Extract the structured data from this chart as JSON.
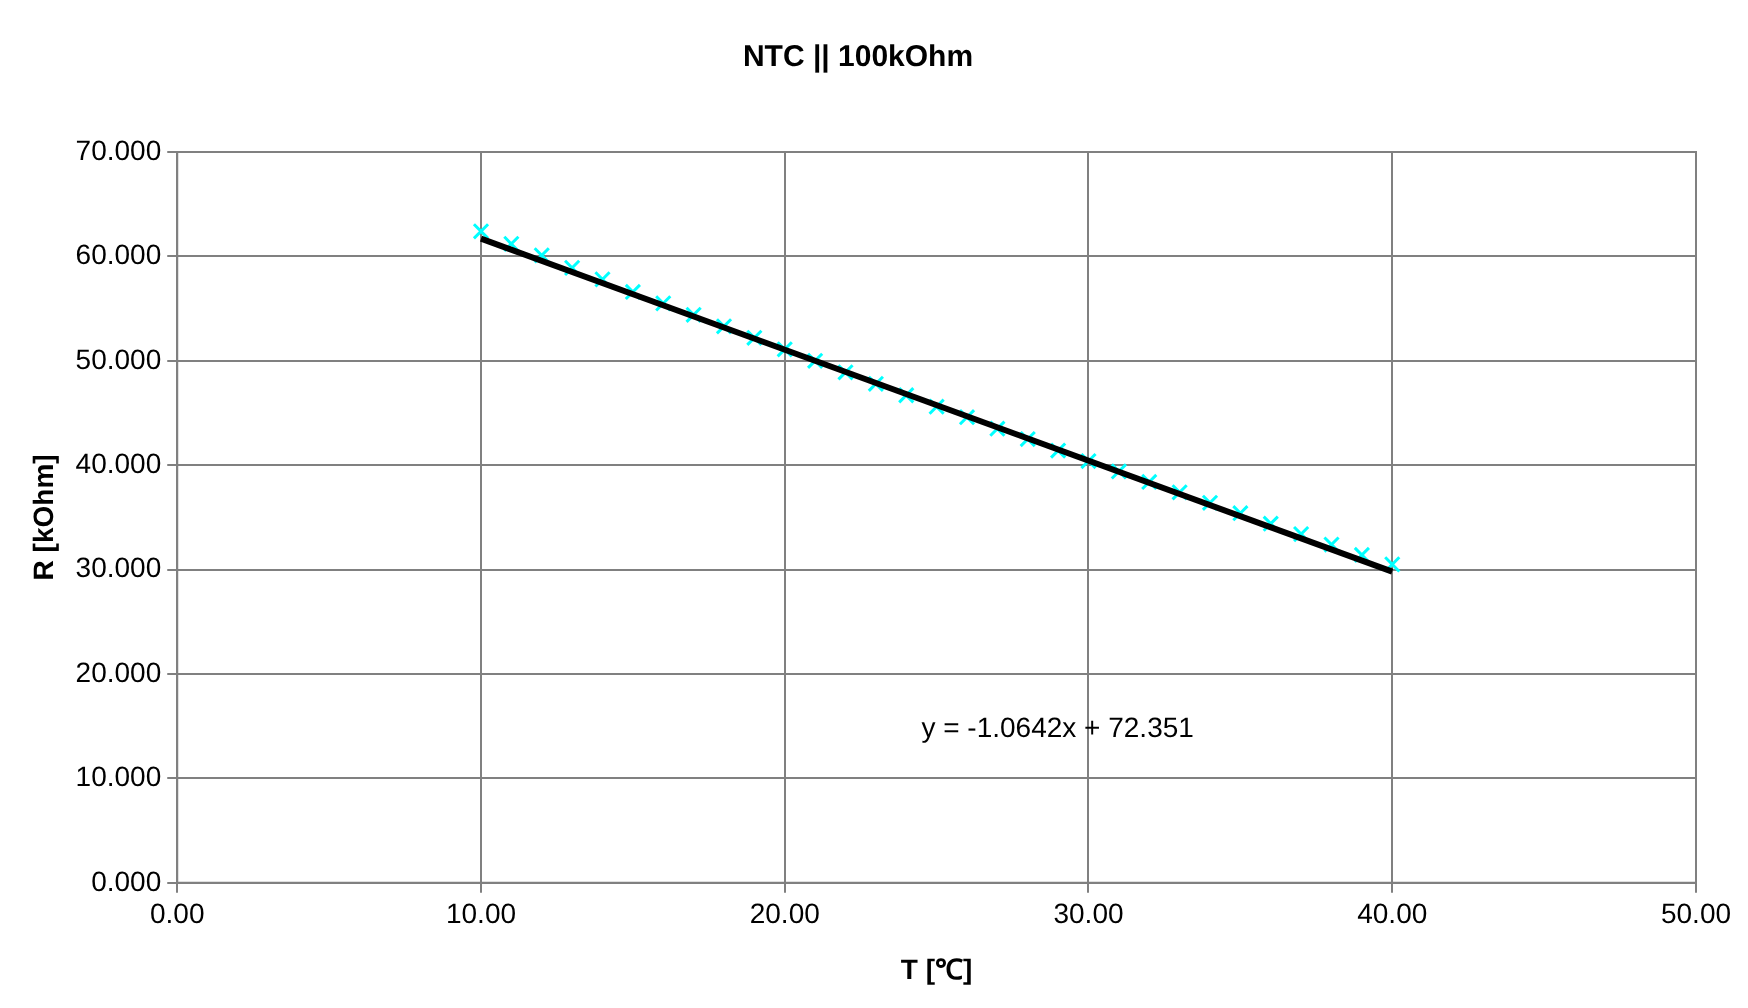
{
  "chart_data": {
    "type": "scatter",
    "title": "NTC || 100kOhm",
    "xlabel": "T [℃]",
    "ylabel": "R [kOhm]",
    "x": [
      10,
      11,
      12,
      13,
      14,
      15,
      16,
      17,
      18,
      19,
      20,
      21,
      22,
      23,
      24,
      25,
      26,
      27,
      28,
      29,
      30,
      31,
      32,
      33,
      34,
      35,
      36,
      37,
      38,
      39,
      40
    ],
    "series": [
      {
        "color": "#00ffff",
        "marker": "cross",
        "values": [
          62.4,
          61.2,
          60.1,
          58.9,
          57.8,
          56.6,
          55.5,
          54.4,
          53.3,
          52.2,
          51.1,
          50.0,
          48.9,
          47.8,
          46.7,
          45.6,
          44.6,
          43.5,
          42.5,
          41.4,
          40.4,
          39.4,
          38.4,
          37.4,
          36.4,
          35.4,
          34.4,
          33.4,
          32.4,
          31.4,
          30.5
        ]
      },
      {
        "type": "line",
        "color": "#000000",
        "marker": "none",
        "line_style": "solid",
        "x": [
          10,
          40
        ],
        "values": [
          61.7,
          29.8
        ]
      }
    ],
    "xlim": [
      0,
      50
    ],
    "xticks": [
      {
        "value": 0,
        "label": "0.00"
      },
      {
        "value": 10,
        "label": "10.00"
      },
      {
        "value": 20,
        "label": "20.00"
      },
      {
        "value": 30,
        "label": "30.00"
      },
      {
        "value": 40,
        "label": "40.00"
      },
      {
        "value": 50,
        "label": "50.00"
      }
    ],
    "ylim": [
      0,
      70
    ],
    "yticks": [
      {
        "value": 0,
        "label": "0.000"
      },
      {
        "value": 10,
        "label": "10.000"
      },
      {
        "value": 20,
        "label": "20.000"
      },
      {
        "value": 30,
        "label": "30.000"
      },
      {
        "value": 40,
        "label": "40.000"
      },
      {
        "value": 50,
        "label": "50.000"
      },
      {
        "value": 60,
        "label": "60.000"
      },
      {
        "value": 70,
        "label": "70.000"
      }
    ],
    "grid": true,
    "legend": false,
    "annotations": [
      "y = -1.0642x + 72.351"
    ]
  }
}
